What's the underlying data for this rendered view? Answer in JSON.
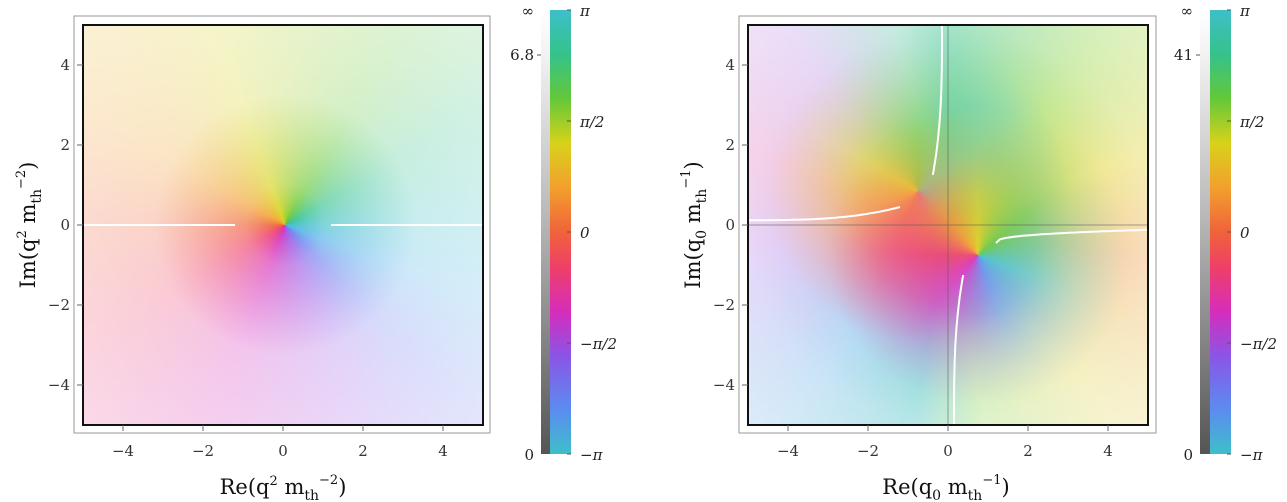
{
  "chart_data": [
    {
      "type": "heatmap",
      "description_kind": "complex phase plot (domain coloring)",
      "xlabel": {
        "main": "Re(q",
        "sup1": "2",
        "mid": " m",
        "sub": "th",
        "sup2": "−2",
        "end": ")"
      },
      "ylabel": {
        "main": "Im(q",
        "sup1": "2",
        "mid": " m",
        "sub": "th",
        "sup2": "−2",
        "end": ")"
      },
      "xlim": [
        -5,
        5
      ],
      "ylim": [
        -5,
        5
      ],
      "xticks": [
        -4,
        -2,
        0,
        2,
        4
      ],
      "yticks": [
        -4,
        -2,
        0,
        2,
        4
      ],
      "xtick_labels": [
        "−4",
        "−2",
        "0",
        "2",
        "4"
      ],
      "ytick_labels": [
        "−4",
        "−2",
        "0",
        "2",
        "4"
      ],
      "zeros": [
        [
          0.05,
          0.0
        ]
      ],
      "poles": [],
      "branch_cuts": [
        {
          "x": [
            -5,
            -1.2
          ],
          "y": [
            0,
            0
          ]
        },
        {
          "x": [
            1.2,
            5
          ],
          "y": [
            0,
            0
          ]
        }
      ],
      "colorbar": {
        "magnitude_labels": [
          "∞",
          "6.8",
          "0"
        ],
        "magnitude_values": [
          null,
          6.8,
          0
        ],
        "phase_labels": [
          "π",
          "π/2",
          "0",
          "−π/2",
          "−π"
        ],
        "phase_values": [
          3.14159,
          1.5708,
          0,
          -1.5708,
          -3.14159
        ]
      }
    },
    {
      "type": "heatmap",
      "description_kind": "complex phase plot (domain coloring)",
      "xlabel": {
        "main": "Re(q",
        "sub1": "0",
        "mid": " m",
        "sub": "th",
        "sup2": "−1",
        "end": ")"
      },
      "ylabel": {
        "main": "Im(q",
        "sub1": "0",
        "mid": " m",
        "sub": "th",
        "sup2": "−1",
        "end": ")"
      },
      "xlim": [
        -5,
        5
      ],
      "ylim": [
        -5,
        5
      ],
      "xticks": [
        -4,
        -2,
        0,
        2,
        4
      ],
      "yticks": [
        -4,
        -2,
        0,
        2,
        4
      ],
      "xtick_labels": [
        "−4",
        "−2",
        "0",
        "2",
        "4"
      ],
      "ytick_labels": [
        "−4",
        "−2",
        "0",
        "2",
        "4"
      ],
      "zeros": [
        [
          -0.7,
          0.75
        ],
        [
          0.75,
          -0.7
        ]
      ],
      "poles": [],
      "branch_cuts": [
        {
          "x": [
            -5,
            -1.2
          ],
          "y": [
            0.12,
            0.45
          ],
          "shape": "hyperbola"
        },
        {
          "x": [
            1.2,
            5
          ],
          "y": [
            -0.45,
            -0.12
          ],
          "shape": "hyperbola"
        },
        {
          "x": [
            -0.38,
            -0.15
          ],
          "y": [
            1.25,
            5
          ],
          "shape": "hyperbola"
        },
        {
          "x": [
            0.15,
            0.38
          ],
          "y": [
            -5,
            -1.25
          ],
          "shape": "hyperbola"
        }
      ],
      "colorbar": {
        "magnitude_labels": [
          "∞",
          "41",
          "0"
        ],
        "magnitude_values": [
          null,
          41,
          0
        ],
        "phase_labels": [
          "π",
          "π/2",
          "0",
          "−π/2",
          "−π"
        ],
        "phase_values": [
          3.14159,
          1.5708,
          0,
          -1.5708,
          -3.14159
        ]
      }
    }
  ]
}
